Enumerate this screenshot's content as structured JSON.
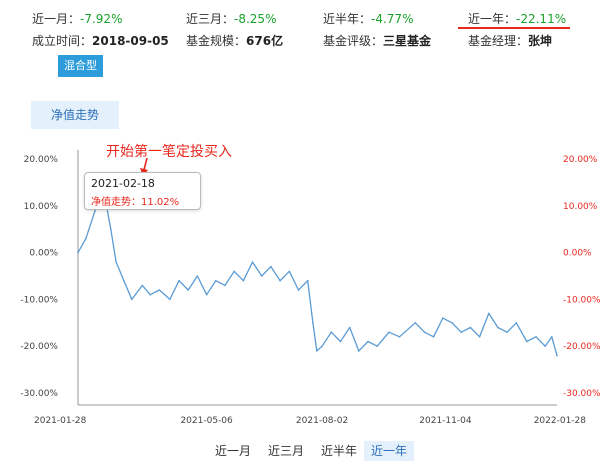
{
  "header": {
    "row1": [
      {
        "label": "近一月：",
        "value": "-7.92%"
      },
      {
        "label": "近三月：",
        "value": "-8.25%"
      },
      {
        "label": "近半年：",
        "value": "-4.77%"
      },
      {
        "label": "近一年：",
        "value": "-22.11%"
      }
    ],
    "row2": [
      {
        "label": "成立时间：",
        "value": "2018-09-05"
      },
      {
        "label": "基金规模：",
        "value": "676亿"
      },
      {
        "label": "基金评级：",
        "value": "三星基金"
      },
      {
        "label": "基金经理：",
        "value": "张坤"
      }
    ]
  },
  "type_tag": "混合型",
  "chart_tab": "净值走势",
  "annotation": "开始第一笔定投买入",
  "tooltip": {
    "date": "2021-02-18",
    "label": "净值走势：",
    "value": "11.02%"
  },
  "colors": {
    "accent": "#2d9cdb",
    "negative": "#1aa32a",
    "positive": "#e8281e",
    "line": "#5b9bd5"
  },
  "icons": {
    "annotation_arrow": "red-arrow-icon"
  },
  "period_tabs": [
    {
      "label": "近一月",
      "active": false
    },
    {
      "label": "近三月",
      "active": false
    },
    {
      "label": "近半年",
      "active": false
    },
    {
      "label": "近一年",
      "active": true
    }
  ],
  "chart_data": {
    "type": "line",
    "title": "",
    "xlabel": "",
    "ylabel": "",
    "ylim": [
      -30,
      20
    ],
    "yticks": [
      "20.00%",
      "10.00%",
      "0.00%",
      "-10.00%",
      "-20.00%",
      "-30.00%"
    ],
    "xticks": [
      "2021-01-28",
      "2021-05-06",
      "2021-08-02",
      "2021-11-04",
      "2022-01-28"
    ],
    "grid": false,
    "series": [
      {
        "x": [
          "2021-01-28",
          "2021-02-03",
          "2021-02-10",
          "2021-02-18",
          "2021-02-22",
          "2021-02-26",
          "2021-03-04",
          "2021-03-10",
          "2021-03-18",
          "2021-03-24",
          "2021-03-31",
          "2021-04-08",
          "2021-04-15",
          "2021-04-22",
          "2021-04-29",
          "2021-05-06",
          "2021-05-13",
          "2021-05-20",
          "2021-05-27",
          "2021-06-03",
          "2021-06-10",
          "2021-06-17",
          "2021-06-24",
          "2021-07-01",
          "2021-07-08",
          "2021-07-15",
          "2021-07-22",
          "2021-07-26",
          "2021-07-29",
          "2021-08-02",
          "2021-08-09",
          "2021-08-16",
          "2021-08-23",
          "2021-08-30",
          "2021-09-06",
          "2021-09-13",
          "2021-09-22",
          "2021-09-30",
          "2021-10-12",
          "2021-10-19",
          "2021-10-26",
          "2021-11-02",
          "2021-11-09",
          "2021-11-16",
          "2021-11-23",
          "2021-11-30",
          "2021-12-07",
          "2021-12-14",
          "2021-12-21",
          "2021-12-28",
          "2022-01-05",
          "2022-01-12",
          "2022-01-19",
          "2022-01-24",
          "2022-01-28"
        ],
        "values": [
          0,
          3,
          9,
          11,
          5,
          -2,
          -6,
          -10,
          -7,
          -9,
          -8,
          -10,
          -6,
          -8,
          -5,
          -9,
          -6,
          -7,
          -4,
          -6,
          -2,
          -5,
          -3,
          -6,
          -4,
          -8,
          -6,
          -15,
          -21,
          -20,
          -17,
          -19,
          -16,
          -21,
          -19,
          -20,
          -17,
          -18,
          -15,
          -17,
          -18,
          -14,
          -15,
          -17,
          -16,
          -18,
          -13,
          -16,
          -17,
          -15,
          -19,
          -18,
          -20,
          -18,
          -22
        ]
      }
    ]
  }
}
